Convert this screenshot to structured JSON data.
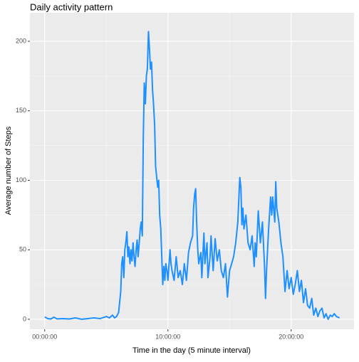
{
  "chart_data": {
    "type": "line",
    "title": "Daily activity pattern",
    "x_label": "Time in the day (5 minute interval)",
    "y_label": "Average number of Steps",
    "xlim": [
      -1.2,
      25.1
    ],
    "ylim": [
      -7.2,
      220.5
    ],
    "xticks": [
      {
        "value": 0,
        "label": "00:00:00"
      },
      {
        "value": 10,
        "label": "10:00:00"
      },
      {
        "value": 20,
        "label": "20:00:00"
      }
    ],
    "yticks": [
      0,
      50,
      100,
      150,
      200
    ],
    "grid": true,
    "series": [
      {
        "color": "#1e90ff",
        "x": [
          0,
          0.25,
          0.5,
          0.75,
          1,
          1.5,
          2,
          2.5,
          3,
          3.5,
          4,
          4.5,
          5,
          5.25,
          5.5,
          5.67,
          5.83,
          6,
          6.17,
          6.25,
          6.33,
          6.42,
          6.5,
          6.58,
          6.67,
          6.75,
          6.83,
          6.92,
          7,
          7.08,
          7.17,
          7.25,
          7.33,
          7.42,
          7.5,
          7.58,
          7.67,
          7.75,
          7.83,
          7.92,
          8,
          8.08,
          8.17,
          8.25,
          8.33,
          8.42,
          8.5,
          8.58,
          8.67,
          8.75,
          8.83,
          8.92,
          9,
          9.17,
          9.25,
          9.33,
          9.42,
          9.5,
          9.58,
          9.67,
          9.75,
          9.83,
          9.92,
          10,
          10.17,
          10.25,
          10.33,
          10.5,
          10.67,
          10.83,
          11,
          11.17,
          11.33,
          11.5,
          11.67,
          11.83,
          12,
          12.08,
          12.17,
          12.25,
          12.33,
          12.42,
          12.5,
          12.67,
          12.75,
          12.92,
          13,
          13.17,
          13.25,
          13.42,
          13.5,
          13.67,
          13.83,
          14,
          14.17,
          14.33,
          14.5,
          14.67,
          14.83,
          15,
          15.17,
          15.33,
          15.5,
          15.67,
          15.83,
          15.92,
          16,
          16.08,
          16.17,
          16.33,
          16.5,
          16.67,
          16.83,
          17,
          17.08,
          17.17,
          17.33,
          17.5,
          17.67,
          17.83,
          17.92,
          18,
          18.17,
          18.33,
          18.42,
          18.5,
          18.67,
          18.75,
          18.83,
          19,
          19.17,
          19.33,
          19.5,
          19.67,
          19.83,
          20,
          20.17,
          20.33,
          20.5,
          20.67,
          20.83,
          21,
          21.17,
          21.33,
          21.5,
          21.67,
          21.83,
          22,
          22.17,
          22.33,
          22.5,
          22.67,
          22.83,
          23,
          23.17,
          23.33,
          23.5,
          23.67,
          23.92
        ],
        "values": [
          1.7,
          0.5,
          0.2,
          1.5,
          0.3,
          0.5,
          0.2,
          1,
          0,
          0.5,
          1,
          0.5,
          2,
          1,
          3,
          1,
          2,
          5,
          20,
          40,
          45,
          30,
          50,
          55,
          63,
          45,
          52,
          40,
          50,
          42,
          55,
          45,
          38,
          50,
          57,
          45,
          55,
          65,
          70,
          60,
          130,
          170,
          155,
          175,
          180,
          207,
          195,
          180,
          185,
          165,
          155,
          140,
          110,
          95,
          100,
          75,
          65,
          45,
          25,
          38,
          28,
          40,
          35,
          28,
          50,
          40,
          35,
          28,
          45,
          30,
          35,
          25,
          40,
          28,
          48,
          55,
          60,
          80,
          90,
          94,
          70,
          50,
          40,
          48,
          30,
          62,
          40,
          55,
          30,
          45,
          60,
          35,
          58,
          42,
          50,
          35,
          30,
          40,
          16,
          35,
          40,
          45,
          55,
          70,
          102,
          95,
          68,
          80,
          65,
          75,
          55,
          50,
          60,
          38,
          55,
          45,
          78,
          55,
          70,
          40,
          15,
          35,
          65,
          88,
          75,
          88,
          70,
          99,
          80,
          70,
          55,
          45,
          20,
          35,
          22,
          30,
          18,
          25,
          35,
          20,
          28,
          12,
          22,
          10,
          8,
          15,
          3,
          8,
          2,
          6,
          8,
          1,
          4,
          0,
          3,
          2,
          4,
          2,
          1
        ]
      }
    ]
  }
}
